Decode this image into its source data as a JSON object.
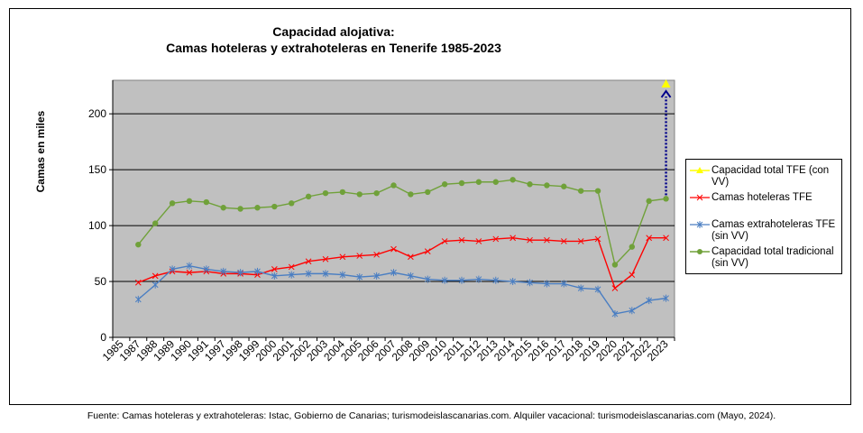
{
  "chart_data": {
    "type": "line",
    "title_line1": "Capacidad  alojativa:",
    "title_line2": "Camas  hoteleras  y extrahoteleras  en Tenerife  1985-2023",
    "ylabel": "Camas en miles",
    "ylim": [
      0,
      230
    ],
    "yticks": [
      0,
      50,
      100,
      150,
      200
    ],
    "grid": true,
    "legend_position": "right",
    "categories": [
      "1985",
      "1987",
      "1988",
      "1989",
      "1990",
      "1991",
      "1997",
      "1998",
      "1999",
      "2000",
      "2001",
      "2002",
      "2003",
      "2004",
      "2005",
      "2006",
      "2007",
      "2008",
      "2009",
      "2010",
      "2011",
      "2012",
      "2013",
      "2014",
      "2015",
      "2016",
      "2017",
      "2018",
      "2019",
      "2020",
      "2021",
      "2022",
      "2023"
    ],
    "series": [
      {
        "name": "Capacidad total TFE (con VV)",
        "color": "#ffff00",
        "marker": "triangle",
        "values": [
          null,
          null,
          null,
          null,
          null,
          null,
          null,
          null,
          null,
          null,
          null,
          null,
          null,
          null,
          null,
          null,
          null,
          null,
          null,
          null,
          null,
          null,
          null,
          null,
          null,
          null,
          null,
          null,
          null,
          null,
          null,
          null,
          226
        ]
      },
      {
        "name": "Camas hoteleras TFE",
        "color": "#ff0000",
        "marker": "star",
        "values": [
          null,
          49,
          55,
          59,
          58,
          59,
          57,
          57,
          56,
          61,
          63,
          68,
          70,
          72,
          73,
          74,
          79,
          72,
          77,
          86,
          87,
          86,
          88,
          89,
          87,
          87,
          86,
          86,
          88,
          44,
          56,
          89,
          89
        ]
      },
      {
        "name": "Camas extrahoteleras TFE (sin VV)",
        "color": "#4a7ec2",
        "marker": "asterisk",
        "values": [
          null,
          34,
          47,
          61,
          64,
          61,
          59,
          58,
          59,
          55,
          56,
          57,
          57,
          56,
          54,
          55,
          58,
          55,
          52,
          51,
          51,
          52,
          51,
          50,
          49,
          48,
          48,
          44,
          43,
          21,
          24,
          33,
          35
        ]
      },
      {
        "name": "Capacidad total tradicional (sin VV)",
        "color": "#70a13a",
        "marker": "circle",
        "values": [
          null,
          83,
          102,
          120,
          122,
          121,
          116,
          115,
          116,
          117,
          120,
          126,
          129,
          130,
          128,
          129,
          136,
          128,
          130,
          137,
          138,
          139,
          139,
          141,
          137,
          136,
          135,
          131,
          131,
          65,
          81,
          122,
          124
        ]
      }
    ],
    "annotation": "dotted arrow from Capacidad total tradicional (sin VV) 2023 up to Capacidad total TFE (con VV) 2023"
  },
  "legend": {
    "items": [
      {
        "line1": "Capacidad total TFE (con",
        "line2": "VV)"
      },
      {
        "line1": "Camas hoteleras TFE",
        "line2": ""
      },
      {
        "line1": "Camas extrahoteleras TFE",
        "line2": "(sin VV)"
      },
      {
        "line1": "Capacidad total tradicional",
        "line2": "(sin VV)"
      }
    ]
  },
  "footer": "Fuente: Camas hoteleras y extrahoteleras: Istac, Gobierno de Canarias; turismodeislascanarias.com. Alquiler vacacional:  turismodeislascanarias.com (Mayo, 2024).",
  "colors": {
    "plot_background": "#c0c0c0",
    "arrow": "#00008b"
  }
}
